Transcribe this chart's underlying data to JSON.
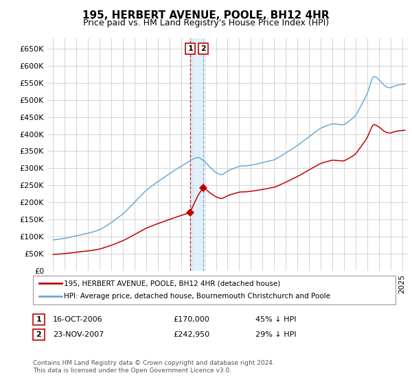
{
  "title": "195, HERBERT AVENUE, POOLE, BH12 4HR",
  "subtitle": "Price paid vs. HM Land Registry's House Price Index (HPI)",
  "legend_line1": "195, HERBERT AVENUE, POOLE, BH12 4HR (detached house)",
  "legend_line2": "HPI: Average price, detached house, Bournemouth Christchurch and Poole",
  "footnote": "Contains HM Land Registry data © Crown copyright and database right 2024.\nThis data is licensed under the Open Government Licence v3.0.",
  "transaction1_date": "16-OCT-2006",
  "transaction1_price": "£170,000",
  "transaction1_hpi": "45% ↓ HPI",
  "transaction1_x": 2006.79,
  "transaction1_y": 170000,
  "transaction2_date": "23-NOV-2007",
  "transaction2_price": "£242,950",
  "transaction2_hpi": "29% ↓ HPI",
  "transaction2_x": 2007.9,
  "transaction2_y": 242950,
  "vline1_x": 2006.79,
  "vline2_x": 2007.9,
  "ylim": [
    0,
    680000
  ],
  "yticks": [
    0,
    50000,
    100000,
    150000,
    200000,
    250000,
    300000,
    350000,
    400000,
    450000,
    500000,
    550000,
    600000,
    650000
  ],
  "xlim": [
    1994.5,
    2025.5
  ],
  "hpi_color": "#6aaad4",
  "price_color": "#C00000",
  "background_color": "#FFFFFF",
  "grid_color": "#CCCCCC",
  "title_fontsize": 11,
  "subtitle_fontsize": 9,
  "axis_fontsize": 8
}
